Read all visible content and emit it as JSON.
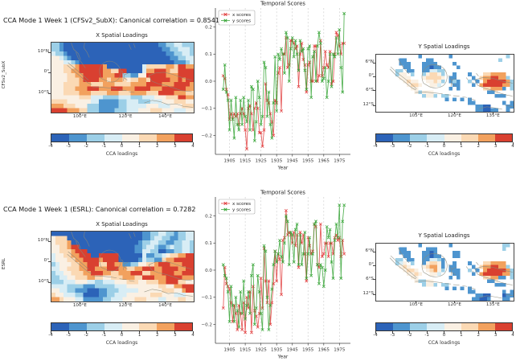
{
  "figure": {
    "background": "#ffffff"
  },
  "palette": {
    "0": "#2c63b8",
    "1": "#4e95cf",
    "2": "#9ccfe7",
    "3": "#d8edf5",
    "4": "#faf0e3",
    "5": "#fbd9b4",
    "6": "#f2a15e",
    "7": "#d94030",
    ".": "#ffffff"
  },
  "colorbar": {
    "label": "CCA loadings",
    "colors": [
      "#2c63b8",
      "#4e95cf",
      "#9ccfe7",
      "#d8edf5",
      "#faf0e3",
      "#fbd9b4",
      "#f2a15e",
      "#d94030"
    ],
    "tick_labels": [
      "-4",
      "-3",
      "-2",
      "-1",
      "0",
      "1",
      "2",
      "3",
      "4"
    ]
  },
  "rows": [
    {
      "suptitle": "CCA Mode 1 Week 1 (CFSv2_SubX): Canonical correlation = 0.8541",
      "model_label": "CFSv2_SubX"
    },
    {
      "suptitle": "CCA Mode 1 Week 1 (ESRL): Canonical correlation = 0.7282",
      "model_label": "ESRL"
    }
  ],
  "map_axes": {
    "x_lat_ticks": [
      {
        "label": "10°N",
        "f": 0.14
      },
      {
        "label": "0°",
        "f": 0.43
      },
      {
        "label": "10°S",
        "f": 0.73
      }
    ],
    "x_lon_ticks": [
      {
        "label": "100°E",
        "f": 0.2
      },
      {
        "label": "120°E",
        "f": 0.52
      },
      {
        "label": "140°E",
        "f": 0.8
      }
    ],
    "y_lat_ticks": [
      {
        "label": "6°N",
        "f": 0.14
      },
      {
        "label": "0°",
        "f": 0.39
      },
      {
        "label": "6°S",
        "f": 0.63
      },
      {
        "label": "12°S",
        "f": 0.89
      }
    ],
    "y_lon_ticks": [
      {
        "label": "105°E",
        "f": 0.29
      },
      {
        "label": "120°E",
        "f": 0.57
      },
      {
        "label": "135°E",
        "f": 0.85
      }
    ]
  },
  "temporal_axis": {
    "xlabel": "Year",
    "xticks": [
      1905,
      1915,
      1925,
      1935,
      1945,
      1955,
      1965,
      1975
    ],
    "yticks": [
      0.2,
      0.1,
      0.0,
      -0.1,
      -0.2
    ],
    "ytick_labels": [
      "0.2",
      "0.1",
      "0.0",
      "−0.1",
      "−0.2"
    ],
    "xlim": [
      1896,
      1982
    ],
    "ylim": [
      -0.27,
      0.27
    ],
    "legend": [
      "x scores",
      "y scores"
    ]
  },
  "chart_data": [
    {
      "id": "temporal-cfsv2",
      "type": "line",
      "title": "Temporal Scores",
      "xlabel": "Year",
      "xlim": [
        1896,
        1982
      ],
      "ylim": [
        -0.27,
        0.27
      ],
      "grid": "vertical-dashed-decades",
      "legend_position": "upper-left",
      "x": [
        1901,
        1902,
        1903,
        1904,
        1905,
        1906,
        1907,
        1908,
        1909,
        1910,
        1911,
        1912,
        1913,
        1914,
        1915,
        1916,
        1917,
        1918,
        1919,
        1920,
        1921,
        1922,
        1923,
        1924,
        1925,
        1926,
        1927,
        1928,
        1929,
        1930,
        1931,
        1932,
        1933,
        1934,
        1935,
        1936,
        1937,
        1938,
        1939,
        1940,
        1941,
        1942,
        1943,
        1944,
        1945,
        1946,
        1947,
        1948,
        1949,
        1950,
        1951,
        1952,
        1953,
        1954,
        1955,
        1956,
        1957,
        1958,
        1959,
        1960,
        1961,
        1962,
        1963,
        1964,
        1965,
        1966,
        1967,
        1968,
        1969,
        1970,
        1971,
        1972,
        1973,
        1974,
        1975,
        1976,
        1977,
        1978
      ],
      "series": [
        {
          "name": "x scores",
          "color": "#e03535",
          "values": [
            0.02,
            0.01,
            -0.03,
            -0.05,
            -0.14,
            -0.12,
            -0.14,
            -0.12,
            -0.13,
            -0.12,
            -0.16,
            -0.12,
            -0.1,
            -0.12,
            -0.18,
            -0.25,
            -0.1,
            -0.09,
            -0.12,
            -0.18,
            -0.1,
            -0.08,
            -0.1,
            -0.19,
            -0.19,
            -0.24,
            -0.18,
            -0.01,
            -0.07,
            -0.08,
            -0.12,
            -0.15,
            -0.2,
            -0.07,
            -0.08,
            0.03,
            0.05,
            -0.11,
            0.1,
            0.1,
            0.16,
            0.05,
            0.06,
            0.15,
            0.15,
            0.14,
            0.12,
            0.13,
            -0.02,
            0.1,
            0.14,
            0.08,
            0.06,
            -0.04,
            0.06,
            0.07,
            0.0,
            0.0,
            0.13,
            0.13,
            0.0,
            0.02,
            0.15,
            0.02,
            0.05,
            0.11,
            0.06,
            0.05,
            0.11,
            -0.01,
            0.0,
            0.1,
            0.18,
            0.17,
            0.13,
            0.1,
            0.14,
            0.14
          ]
        },
        {
          "name": "y scores",
          "color": "#2ca02c",
          "values": [
            -0.03,
            0.06,
            -0.04,
            -0.07,
            -0.18,
            -0.07,
            -0.14,
            -0.21,
            -0.06,
            -0.16,
            -0.18,
            -0.07,
            -0.16,
            -0.06,
            -0.13,
            -0.15,
            -0.07,
            -0.18,
            -0.02,
            -0.03,
            -0.22,
            -0.15,
            0.0,
            -0.06,
            -0.16,
            -0.13,
            0.07,
            0.05,
            -0.13,
            -0.04,
            -0.16,
            -0.21,
            -0.08,
            0.09,
            -0.11,
            0.1,
            0.08,
            0.12,
            0.1,
            0.03,
            0.18,
            0.16,
            0.0,
            0.12,
            0.16,
            0.09,
            0.15,
            0.1,
            0.04,
            0.15,
            0.11,
            0.12,
            0.04,
            -0.03,
            0.12,
            0.13,
            -0.06,
            0.09,
            0.11,
            0.0,
            0.13,
            0.18,
            0.14,
            0.0,
            0.01,
            0.05,
            -0.06,
            0.0,
            0.1,
            -0.02,
            0.1,
            0.09,
            0.16,
            0.1,
            0.19,
            0.05,
            -0.04,
            0.25
          ]
        }
      ]
    },
    {
      "id": "temporal-esrl",
      "type": "line",
      "title": "Temporal Scores",
      "xlabel": "Year",
      "xlim": [
        1896,
        1982
      ],
      "ylim": [
        -0.27,
        0.27
      ],
      "grid": "vertical-dashed-decades",
      "legend_position": "upper-left",
      "x": [
        1901,
        1902,
        1903,
        1904,
        1905,
        1906,
        1907,
        1908,
        1909,
        1910,
        1911,
        1912,
        1913,
        1914,
        1915,
        1916,
        1917,
        1918,
        1919,
        1920,
        1921,
        1922,
        1923,
        1924,
        1925,
        1926,
        1927,
        1928,
        1929,
        1930,
        1931,
        1932,
        1933,
        1934,
        1935,
        1936,
        1937,
        1938,
        1939,
        1940,
        1941,
        1942,
        1943,
        1944,
        1945,
        1946,
        1947,
        1948,
        1949,
        1950,
        1951,
        1952,
        1953,
        1954,
        1955,
        1956,
        1957,
        1958,
        1959,
        1960,
        1961,
        1962,
        1963,
        1964,
        1965,
        1966,
        1967,
        1968,
        1969,
        1970,
        1971,
        1972,
        1973,
        1974,
        1975,
        1976,
        1977,
        1978
      ],
      "series": [
        {
          "name": "x scores",
          "color": "#e03535",
          "values": [
            -0.14,
            0.01,
            -0.05,
            -0.06,
            -0.07,
            -0.12,
            -0.19,
            -0.13,
            -0.16,
            -0.22,
            -0.13,
            -0.16,
            -0.22,
            -0.12,
            -0.23,
            -0.1,
            -0.14,
            -0.08,
            -0.23,
            -0.06,
            -0.15,
            -0.17,
            -0.21,
            -0.16,
            -0.03,
            -0.14,
            0.08,
            -0.04,
            -0.12,
            -0.04,
            -0.2,
            -0.12,
            -0.05,
            0.07,
            -0.04,
            0.06,
            0.04,
            -0.09,
            0.11,
            0.12,
            0.22,
            0.13,
            0.14,
            0.13,
            0.1,
            0.14,
            0.09,
            0.13,
            0.01,
            0.14,
            0.1,
            0.13,
            0.06,
            -0.04,
            0.12,
            0.09,
            0.06,
            0.07,
            0.17,
            0.16,
            0.02,
            0.01,
            0.17,
            0.05,
            0.06,
            0.1,
            0.1,
            0.05,
            0.1,
            0.1,
            0.06,
            0.12,
            0.13,
            0.11,
            0.12,
            0.05,
            0.11,
            0.06
          ]
        },
        {
          "name": "y scores",
          "color": "#2ca02c",
          "values": [
            0.02,
            -0.02,
            -0.03,
            -0.08,
            -0.19,
            -0.06,
            -0.13,
            -0.19,
            -0.1,
            -0.15,
            -0.21,
            -0.08,
            -0.16,
            -0.04,
            -0.18,
            -0.13,
            -0.08,
            -0.16,
            -0.02,
            0.02,
            -0.2,
            -0.14,
            -0.02,
            -0.08,
            -0.16,
            -0.22,
            0.09,
            0.07,
            -0.1,
            -0.22,
            -0.13,
            -0.07,
            0.02,
            0.07,
            0.03,
            0.06,
            0.11,
            0.05,
            0.03,
            0.1,
            0.2,
            0.18,
            0.02,
            0.14,
            0.13,
            0.03,
            0.15,
            0.17,
            0.02,
            0.13,
            0.02,
            0.06,
            0.14,
            -0.03,
            0.06,
            0.12,
            -0.02,
            0.06,
            0.17,
            0.18,
            0.02,
            -0.05,
            0.02,
            0.01,
            -0.06,
            0.0,
            0.16,
            0.12,
            0.15,
            0.03,
            -0.03,
            0.11,
            0.17,
            0.12,
            0.24,
            -0.03,
            0.18,
            0.24
          ]
        }
      ]
    },
    {
      "id": "xmap-cfsv2",
      "type": "heatmap",
      "title": "X Spatial Loadings",
      "value_range": [
        -4,
        4
      ],
      "units": "CCA loadings",
      "palette_note": "chars index palette, lon 88E-152E, lat 14N-19S",
      "grid": [
        "221000000000000000000000000112233222",
        "221000000000000000000000000011223332",
        "322100000000000000000000000001122332",
        "443210000000000000000000000000112233",
        "444332100000000000000000000000011123",
        "444555677777760000000003555556657766",
        "444556677777766557700003667776557777",
        "444455667777766677221144777776667777",
        "444455567777665666545566577777667677",
        "444555566655566655556666777766677776",
        "444555666777666777666777766677777766",
        "444555566655556665556666555777766655",
        "444444455533322223332223334445557766",
        "555544444433111112233322233344455544",
        "666555444222111112233333444333444555",
        "777766655222111122233344455544433344"
      ]
    },
    {
      "id": "xmap-esrl",
      "type": "heatmap",
      "title": "X Spatial Loadings",
      "value_range": [
        -4,
        4
      ],
      "units": "CCA loadings",
      "palette_note": "chars index palette, lon 88E-152E, lat 14N-19S",
      "grid": [
        "000000000000000000000001122332212233",
        "455500000000000000000001123322112233",
        "455560000000000000000012233221122332",
        "445567700000000000000112332112322332",
        "445556777000000000000113322001122332",
        "344556677700777770000003112234556677",
        "344455667777677770000013221156677777",
        "234445566777557766112244556777666777",
        "334455566776667776655667776677776677",
        "233445556677766556667775566677766777",
        "223344555665544555666557776667777666",
        "222333444332233344455544555667775544",
        "333322221112222233344444444554466777",
        "443322111000112223333344444455544677",
        "544333220000112233344444455544433344",
        "665444331111122333444555444334445544"
      ]
    },
    {
      "id": "ymap-cfsv2",
      "type": "heatmap",
      "title": "Y Spatial Loadings",
      "value_range": [
        -4,
        4
      ],
      "units": "CCA loadings",
      "palette_note": "chars index palette, dot=ocean white, lon 89E-148E, lat 10N-14S",
      "grid": [
        "...........1.......1..............2.",
        "......11.....11.................2...",
        "......111...1111....1...............",
        ".......11...11011....1..............",
        ".....22.11..113322..................",
        ".....244.2..245542..1...1...556666..",
        "......444...455554.11....1.56677662.",
        ".......4544..44542.121..2.1.67777762",
        "........4554..443...11...1.677777662",
        ".........44........1.1......556661.2",
        "..........42444..............114....",
        "............2442.22............111..",
        "..................1.1.1.1...........",
        "........................11.......1.1",
        "..........................1100....11",
        "..........................110011..1."
      ]
    },
    {
      "id": "ymap-esrl",
      "type": "heatmap",
      "title": "Y Spatial Loadings",
      "value_range": [
        -4,
        4
      ],
      "units": "CCA loadings",
      "palette_note": "chars index palette, dot=ocean white, lon 89E-148E, lat 10N-14S",
      "grid": [
        "...........1.......1.............22.",
        "......11.....111.................2..",
        "......111...1101....11..............",
        ".......11...11011...11..............",
        ".....22.11..113321..................",
        ".....234.2..145541..1...1...556666..",
        "......454...456641.11....1.56677662.",
        ".......4554..45642.111..2.1.67777762",
        "........4454..443...11...1.677777662",
        ".........44........1.1......556611.2",
        "..........42244..............114....",
        "............2442.22............111..",
        "..................1.1.1.1...........",
        "........................11.......1.1",
        "..........................1100...011",
        ".........................11001...11."
      ]
    }
  ]
}
